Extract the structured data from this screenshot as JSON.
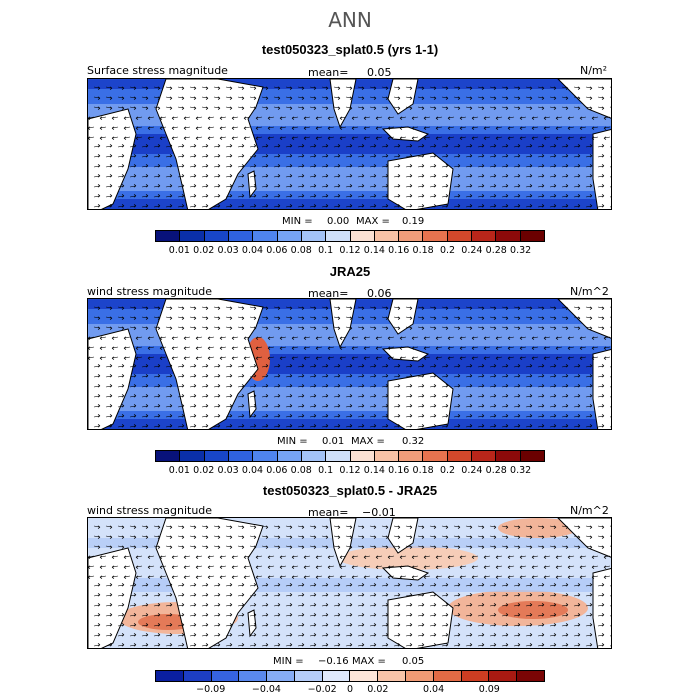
{
  "title": "ANN",
  "panels": [
    {
      "title": "test050323_splat0.5 (yrs 1-1)",
      "left_label": "Surface stress magnitude",
      "mean_label": "mean=",
      "mean_value": "0.05",
      "units": "N/m²",
      "min_label": "MIN =",
      "min_value": "0.00",
      "max_label": "MAX =",
      "max_value": "0.19",
      "colorbar_ticks": [
        "0.01",
        "0.02",
        "0.03",
        "0.04",
        "0.06",
        "0.08",
        "0.1",
        "0.12",
        "0.14",
        "0.16",
        "0.18",
        "0.2",
        "0.24",
        "0.28",
        "0.32"
      ]
    },
    {
      "title": "JRA25",
      "left_label": "wind stress magnitude",
      "mean_label": "mean=",
      "mean_value": "0.06",
      "units": "N/m^2",
      "min_label": "MIN =",
      "min_value": "0.01",
      "max_label": "MAX =",
      "max_value": "0.32",
      "colorbar_ticks": [
        "0.01",
        "0.02",
        "0.03",
        "0.04",
        "0.06",
        "0.08",
        "0.1",
        "0.12",
        "0.14",
        "0.16",
        "0.18",
        "0.2",
        "0.24",
        "0.28",
        "0.32"
      ]
    },
    {
      "title": "test050323_splat0.5 - JRA25",
      "left_label": "wind stress magnitude",
      "mean_label": "mean=",
      "mean_value": "−0.01",
      "units": "N/m^2",
      "min_label": "MIN =",
      "min_value": "−0.16",
      "max_label": "MAX =",
      "max_value": "0.05",
      "colorbar_ticks": [
        "−0.09",
        "−0.04",
        "−0.02",
        "0",
        "0.02",
        "0.04",
        "0.09"
      ]
    }
  ],
  "colorbar_colors": {
    "sequential": [
      "#08127a",
      "#0a2fa8",
      "#1846c8",
      "#2f62e0",
      "#4f84ee",
      "#76a4f5",
      "#a3c3f7",
      "#cfe0fa",
      "#fbe1d3",
      "#f8c2a6",
      "#f09d7a",
      "#e6734f",
      "#d2482b",
      "#b8261a",
      "#8c0a0a",
      "#6b0000"
    ],
    "diverging": [
      "#0a1fa0",
      "#1d3ec4",
      "#3663e0",
      "#5a89ee",
      "#86acf5",
      "#b5cdf9",
      "#dfe9fc",
      "#fde5d8",
      "#f8c4a8",
      "#f09b75",
      "#e36b45",
      "#cc3d22",
      "#a81a12",
      "#7a0505"
    ]
  },
  "field_colors": {
    "deep": "#1a3fc8",
    "mid": "#3a6fe6",
    "light": "#7fa6f3",
    "pale": "#c5d8f8",
    "warm": "#f0a07c",
    "hot": "#e06040",
    "land": "#ffffff"
  }
}
